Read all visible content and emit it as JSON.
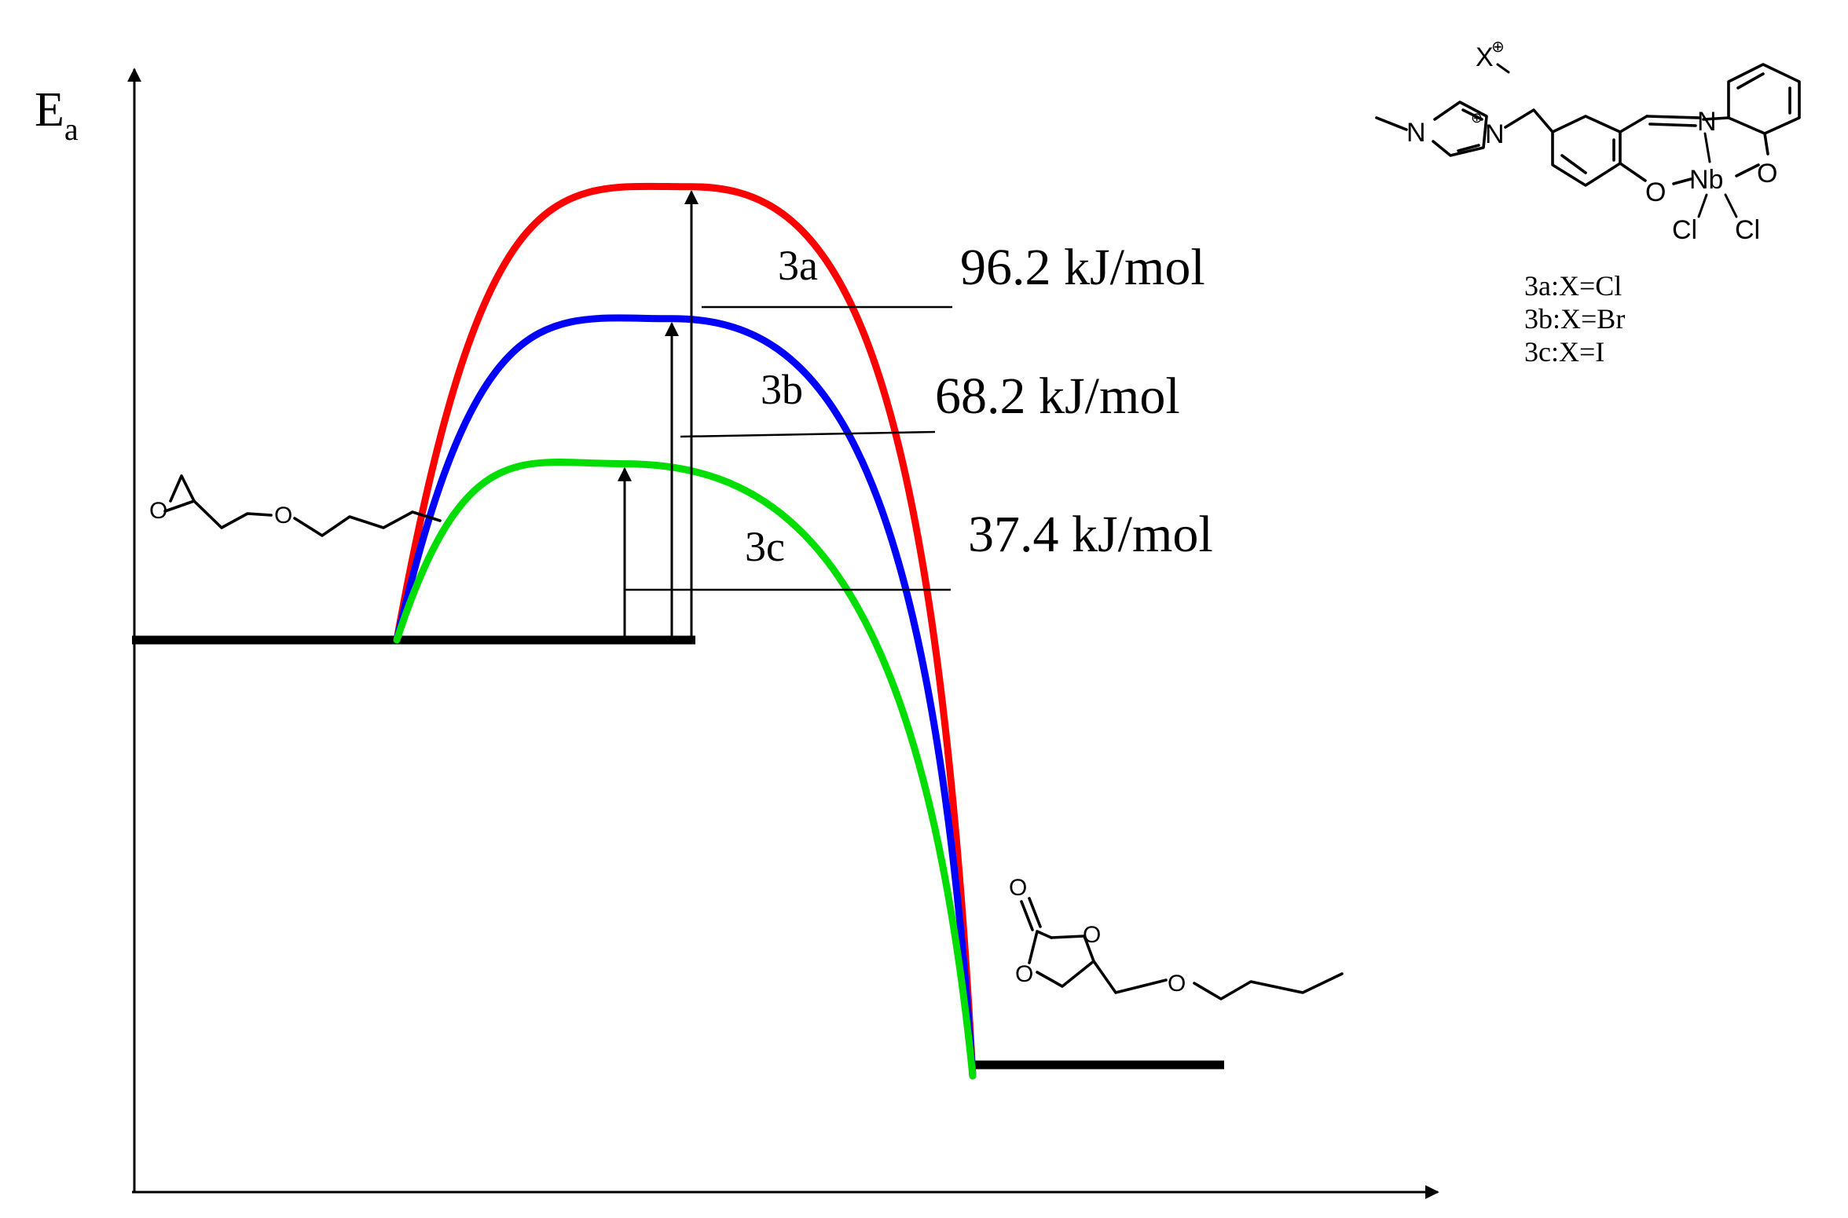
{
  "axes": {
    "y_label_main": "E",
    "y_label_sub": "a"
  },
  "levels": {
    "reactant_energy": 0,
    "product_energy": -55
  },
  "curves": [
    {
      "label": "3a",
      "color": "#ff0000",
      "barrier": "96.2 kJ/mol",
      "barrier_value": 96.2
    },
    {
      "label": "3b",
      "color": "#0000ff",
      "barrier": "68.2 kJ/mol",
      "barrier_value": 68.2
    },
    {
      "label": "3c",
      "color": "#00dd00",
      "barrier": "37.4 kJ/mol",
      "barrier_value": 37.4
    }
  ],
  "catalyst": {
    "atom_N1": "N",
    "atom_N2": "N",
    "atom_N3": "N",
    "anion": "X",
    "charge": "⊕",
    "atom_O1": "O",
    "atom_O2": "O",
    "metal": "Nb",
    "ligand_Cl1": "Cl",
    "ligand_Cl2": "Cl",
    "legend": [
      "3a:X=Cl",
      "3b:X=Br",
      "3c:X=I"
    ]
  },
  "reactant": {
    "atom_O_ring": "O",
    "atom_O_ether": "O"
  },
  "product": {
    "atom_O_carbonyl": "O",
    "atom_O_ring1": "O",
    "atom_O_ring2": "O",
    "atom_O_ether": "O"
  }
}
